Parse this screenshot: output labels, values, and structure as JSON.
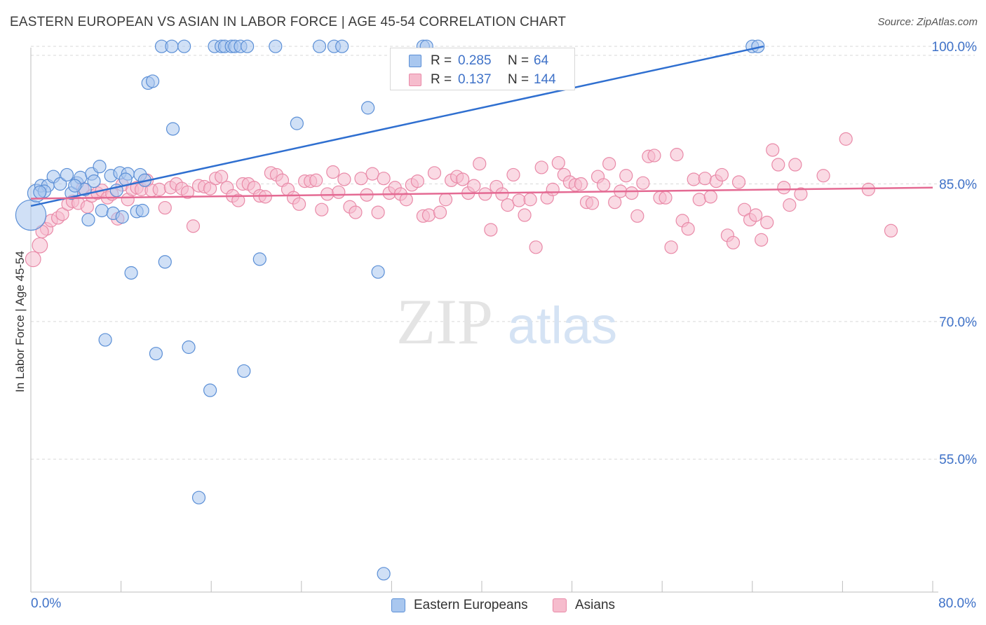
{
  "header": {
    "title": "EASTERN EUROPEAN VS ASIAN IN LABOR FORCE | AGE 45-54 CORRELATION CHART",
    "source": "Source: ZipAtlas.com"
  },
  "watermark": {
    "part1": "ZIP",
    "part2": "atlas"
  },
  "colors": {
    "blue_fill": "#a9c7ef",
    "blue_stroke": "#5b8fd6",
    "blue_line": "#2f6fd0",
    "pink_fill": "#f6bccd",
    "pink_stroke": "#e98aa8",
    "pink_line": "#e46a93",
    "tick_label": "#3f72c8",
    "grid": "#d9d9d9"
  },
  "legend_top": {
    "rows": [
      {
        "r_label": "R =",
        "r_value": "0.285",
        "n_label": "N =",
        "n_value": "64",
        "color_key": "blue"
      },
      {
        "r_label": "R =",
        "r_value": "0.137",
        "n_label": "N =",
        "n_value": "144",
        "color_key": "pink"
      }
    ]
  },
  "legend_bottom": {
    "items": [
      {
        "label": "Eastern Europeans",
        "color_key": "blue"
      },
      {
        "label": "Asians",
        "color_key": "pink"
      }
    ]
  },
  "chart_data": {
    "type": "scatter",
    "title": "EASTERN EUROPEAN VS ASIAN IN LABOR FORCE | AGE 45-54 CORRELATION CHART",
    "xlabel": "",
    "ylabel": "In Labor Force | Age 45-54",
    "xlim": [
      0,
      80
    ],
    "ylim": [
      40.5,
      102
    ],
    "x_tick_labels": {
      "min": "0.0%",
      "max": "80.0%"
    },
    "y_ticks": [
      {
        "value": 100,
        "label": "100.0%"
      },
      {
        "value": 85,
        "label": "85.0%"
      },
      {
        "value": 70,
        "label": "70.0%"
      },
      {
        "value": 55,
        "label": "55.0%"
      }
    ],
    "grid": true,
    "legend": "top-center",
    "series": [
      {
        "name": "Eastern Europeans",
        "color_key": "blue",
        "trend": {
          "x": [
            0,
            65
          ],
          "y": [
            82.6,
            100.0
          ]
        },
        "points": [
          [
            0.0,
            81.6,
            2.4
          ],
          [
            0.5,
            84.0,
            1.4
          ],
          [
            0.9,
            84.8,
            1
          ],
          [
            1.5,
            84.8,
            1
          ],
          [
            2.0,
            85.8,
            1
          ],
          [
            2.6,
            85.0,
            1
          ],
          [
            3.2,
            86.0,
            1
          ],
          [
            3.6,
            84.0,
            1
          ],
          [
            4.1,
            85.1,
            1
          ],
          [
            4.4,
            85.7,
            1
          ],
          [
            4.8,
            84.4,
            1
          ],
          [
            5.1,
            81.1,
            1
          ],
          [
            5.4,
            86.1,
            1
          ],
          [
            5.6,
            85.3,
            1
          ],
          [
            6.1,
            86.9,
            1
          ],
          [
            6.3,
            82.1,
            1
          ],
          [
            6.6,
            68.0,
            1
          ],
          [
            7.1,
            85.9,
            1
          ],
          [
            7.3,
            81.8,
            1
          ],
          [
            7.6,
            84.3,
            1
          ],
          [
            7.9,
            86.2,
            1
          ],
          [
            8.1,
            81.4,
            1
          ],
          [
            8.6,
            86.1,
            1
          ],
          [
            8.9,
            75.3,
            1
          ],
          [
            9.4,
            82.0,
            1
          ],
          [
            9.7,
            86.0,
            1
          ],
          [
            9.9,
            82.1,
            1
          ],
          [
            10.1,
            85.4,
            1
          ],
          [
            10.4,
            96.0,
            1
          ],
          [
            10.8,
            96.2,
            1
          ],
          [
            11.1,
            66.5,
            1
          ],
          [
            11.6,
            100.0,
            1
          ],
          [
            11.9,
            76.5,
            1
          ],
          [
            12.6,
            91.0,
            1
          ],
          [
            12.5,
            100.0,
            1
          ],
          [
            13.6,
            100.0,
            1
          ],
          [
            14.0,
            67.2,
            1
          ],
          [
            14.9,
            50.8,
            1
          ],
          [
            15.9,
            62.5,
            1
          ],
          [
            16.3,
            100.0,
            1
          ],
          [
            16.9,
            100.0,
            1
          ],
          [
            17.2,
            100.0,
            1
          ],
          [
            17.8,
            100.0,
            1
          ],
          [
            18.1,
            100.0,
            1
          ],
          [
            18.6,
            100.0,
            1
          ],
          [
            18.9,
            64.6,
            1
          ],
          [
            19.2,
            100.0,
            1
          ],
          [
            20.3,
            76.8,
            1
          ],
          [
            21.7,
            100.0,
            1
          ],
          [
            23.6,
            91.6,
            1
          ],
          [
            25.6,
            100.0,
            1
          ],
          [
            26.9,
            100.0,
            1
          ],
          [
            27.6,
            100.0,
            1
          ],
          [
            29.9,
            93.3,
            1
          ],
          [
            30.8,
            75.4,
            1
          ],
          [
            31.3,
            42.5,
            1
          ],
          [
            34.8,
            100.0,
            1
          ],
          [
            64.0,
            100.0,
            1
          ],
          [
            64.5,
            100.0,
            1
          ],
          [
            8.4,
            85.5,
            1
          ],
          [
            3.9,
            84.8,
            1
          ],
          [
            1.2,
            84.2,
            1
          ],
          [
            0.8,
            84.1,
            1
          ],
          [
            35.1,
            100.0,
            1
          ]
        ]
      },
      {
        "name": "Asians",
        "color_key": "pink",
        "trend": {
          "x": [
            0,
            80
          ],
          "y": [
            83.4,
            84.6
          ]
        },
        "points": [
          [
            0.2,
            76.8,
            1.2
          ],
          [
            0.8,
            78.3,
            1.2
          ],
          [
            1.4,
            80.1,
            1
          ],
          [
            1.8,
            81.0,
            1
          ],
          [
            2.4,
            81.3,
            1
          ],
          [
            2.8,
            81.7,
            1
          ],
          [
            3.3,
            82.8,
            1
          ],
          [
            3.7,
            83.1,
            1
          ],
          [
            4.2,
            82.9,
            1
          ],
          [
            4.6,
            84.5,
            1
          ],
          [
            5.0,
            82.5,
            1
          ],
          [
            5.4,
            83.7,
            1
          ],
          [
            5.9,
            84.0,
            1
          ],
          [
            6.3,
            84.3,
            1
          ],
          [
            6.8,
            83.5,
            1
          ],
          [
            7.2,
            83.9,
            1
          ],
          [
            7.7,
            81.2,
            1
          ],
          [
            8.1,
            84.9,
            1
          ],
          [
            8.6,
            83.3,
            1
          ],
          [
            9.0,
            84.4,
            1
          ],
          [
            9.4,
            84.6,
            1
          ],
          [
            9.8,
            84.4,
            1
          ],
          [
            10.3,
            85.4,
            1
          ],
          [
            10.7,
            84.3,
            1
          ],
          [
            11.4,
            84.4,
            1
          ],
          [
            11.9,
            82.4,
            1
          ],
          [
            12.4,
            84.6,
            1
          ],
          [
            12.9,
            85.0,
            1
          ],
          [
            13.4,
            84.5,
            1
          ],
          [
            13.9,
            84.1,
            1
          ],
          [
            14.4,
            80.4,
            1
          ],
          [
            14.9,
            84.8,
            1
          ],
          [
            15.4,
            84.7,
            1
          ],
          [
            15.9,
            84.5,
            1
          ],
          [
            16.4,
            85.6,
            1
          ],
          [
            16.9,
            85.8,
            1
          ],
          [
            17.4,
            84.6,
            1
          ],
          [
            17.9,
            83.7,
            1
          ],
          [
            18.4,
            83.2,
            1
          ],
          [
            18.8,
            85.0,
            1
          ],
          [
            19.3,
            85.0,
            1
          ],
          [
            19.8,
            84.6,
            1
          ],
          [
            20.3,
            83.7,
            1
          ],
          [
            20.8,
            83.6,
            1
          ],
          [
            21.3,
            86.2,
            1
          ],
          [
            21.8,
            86.0,
            1
          ],
          [
            22.3,
            85.4,
            1
          ],
          [
            22.8,
            84.4,
            1
          ],
          [
            23.3,
            83.5,
            1
          ],
          [
            23.8,
            82.8,
            1
          ],
          [
            24.3,
            85.3,
            1
          ],
          [
            24.8,
            85.3,
            1
          ],
          [
            25.3,
            85.4,
            1
          ],
          [
            25.8,
            82.2,
            1
          ],
          [
            26.3,
            83.9,
            1
          ],
          [
            26.8,
            86.3,
            1
          ],
          [
            27.3,
            84.1,
            1
          ],
          [
            27.8,
            85.5,
            1
          ],
          [
            28.3,
            82.5,
            1
          ],
          [
            28.8,
            81.9,
            1
          ],
          [
            29.3,
            85.6,
            1
          ],
          [
            29.8,
            83.8,
            1
          ],
          [
            30.3,
            86.1,
            1
          ],
          [
            30.8,
            81.9,
            1
          ],
          [
            31.3,
            85.6,
            1
          ],
          [
            31.8,
            84.0,
            1
          ],
          [
            32.3,
            84.6,
            1
          ],
          [
            32.8,
            83.9,
            1
          ],
          [
            33.3,
            83.3,
            1
          ],
          [
            33.8,
            84.9,
            1
          ],
          [
            34.3,
            85.3,
            1
          ],
          [
            34.8,
            81.5,
            1
          ],
          [
            35.3,
            81.6,
            1
          ],
          [
            35.8,
            86.2,
            1
          ],
          [
            36.3,
            81.9,
            1
          ],
          [
            36.8,
            83.3,
            1
          ],
          [
            37.3,
            85.4,
            1
          ],
          [
            37.8,
            85.8,
            1
          ],
          [
            38.3,
            85.5,
            1
          ],
          [
            38.8,
            84.0,
            1
          ],
          [
            39.3,
            84.8,
            1
          ],
          [
            39.8,
            87.2,
            1
          ],
          [
            40.3,
            83.9,
            1
          ],
          [
            40.8,
            80.0,
            1
          ],
          [
            41.3,
            84.7,
            1
          ],
          [
            41.8,
            83.9,
            1
          ],
          [
            42.3,
            82.7,
            1
          ],
          [
            42.8,
            86.0,
            1
          ],
          [
            43.3,
            83.2,
            1
          ],
          [
            43.8,
            81.6,
            1
          ],
          [
            44.3,
            83.3,
            1
          ],
          [
            44.8,
            78.1,
            1
          ],
          [
            45.3,
            86.8,
            1
          ],
          [
            45.8,
            83.5,
            1
          ],
          [
            46.3,
            84.4,
            1
          ],
          [
            46.8,
            87.3,
            1
          ],
          [
            47.3,
            86.0,
            1
          ],
          [
            47.8,
            85.2,
            1
          ],
          [
            48.3,
            84.9,
            1
          ],
          [
            48.8,
            85.0,
            1
          ],
          [
            49.3,
            83.0,
            1
          ],
          [
            49.8,
            82.9,
            1
          ],
          [
            50.3,
            85.8,
            1
          ],
          [
            50.8,
            84.9,
            1
          ],
          [
            51.3,
            87.2,
            1
          ],
          [
            51.8,
            83.0,
            1
          ],
          [
            52.3,
            84.2,
            1
          ],
          [
            52.8,
            85.9,
            1
          ],
          [
            53.3,
            84.0,
            1
          ],
          [
            53.8,
            81.5,
            1
          ],
          [
            54.3,
            85.1,
            1
          ],
          [
            54.8,
            88.0,
            1
          ],
          [
            55.3,
            88.1,
            1
          ],
          [
            55.8,
            83.5,
            1
          ],
          [
            56.3,
            83.5,
            1
          ],
          [
            56.8,
            78.1,
            1
          ],
          [
            57.3,
            88.2,
            1
          ],
          [
            57.8,
            81.0,
            1
          ],
          [
            58.3,
            80.1,
            1
          ],
          [
            58.8,
            85.5,
            1
          ],
          [
            59.3,
            83.3,
            1
          ],
          [
            59.8,
            85.6,
            1
          ],
          [
            60.3,
            83.6,
            1
          ],
          [
            60.8,
            85.3,
            1
          ],
          [
            61.3,
            86.0,
            1
          ],
          [
            61.8,
            79.4,
            1
          ],
          [
            62.3,
            78.6,
            1
          ],
          [
            62.8,
            85.2,
            1
          ],
          [
            63.3,
            82.2,
            1
          ],
          [
            63.8,
            81.1,
            1
          ],
          [
            64.3,
            81.6,
            1
          ],
          [
            64.8,
            78.9,
            1
          ],
          [
            65.3,
            80.8,
            1
          ],
          [
            65.8,
            88.7,
            1
          ],
          [
            66.3,
            87.1,
            1
          ],
          [
            66.8,
            84.6,
            1
          ],
          [
            67.3,
            82.7,
            1
          ],
          [
            67.8,
            87.1,
            1
          ],
          [
            68.3,
            83.9,
            1
          ],
          [
            70.3,
            85.9,
            1
          ],
          [
            72.3,
            89.9,
            1
          ],
          [
            74.3,
            84.4,
            1
          ],
          [
            76.3,
            79.9,
            1
          ],
          [
            1.0,
            79.8,
            1
          ]
        ]
      }
    ]
  }
}
